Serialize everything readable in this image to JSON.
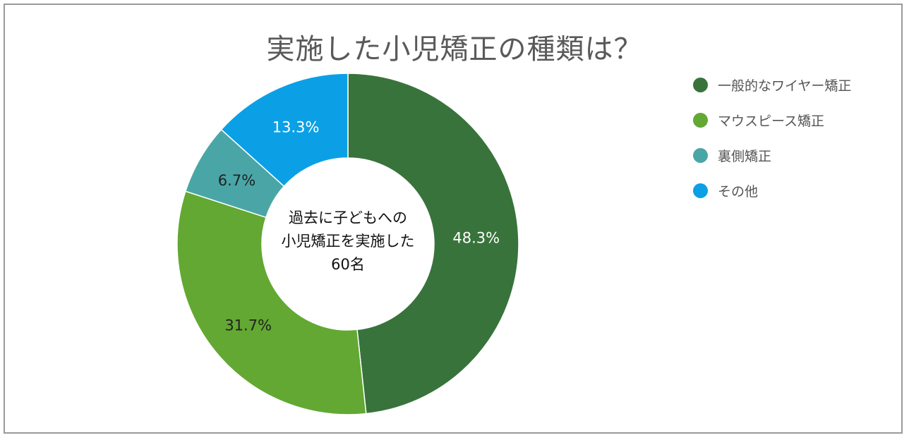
{
  "chart_data": {
    "type": "pie",
    "title": "実施した小児矯正の種類は？",
    "center_text": [
      "過去に子どもへの",
      "小児矯正を実施した",
      "60名"
    ],
    "categories": [
      "一般的なワイヤー矯正",
      "マウスピース矯正",
      "裏側矯正",
      "その他"
    ],
    "values": [
      48.3,
      31.7,
      6.7,
      13.3
    ],
    "labels": [
      "48.3%",
      "31.7%",
      "6.7%",
      "13.3%"
    ],
    "colors": [
      "#38733b",
      "#62a832",
      "#4aa6a6",
      "#0ba0e6"
    ],
    "label_colors": [
      "#ffffff",
      "#222222",
      "#222222",
      "#ffffff"
    ],
    "donut": true,
    "legend_position": "right"
  }
}
